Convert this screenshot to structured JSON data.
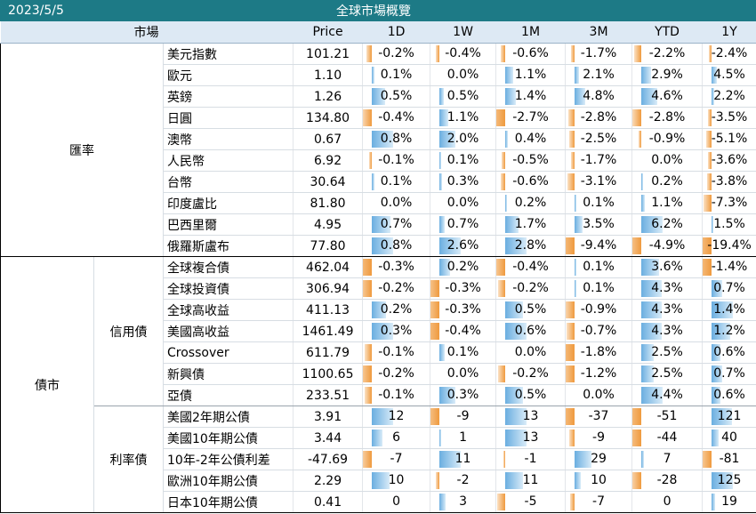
{
  "title": {
    "date": "2023/5/5",
    "text": "全球市場概覽"
  },
  "header": {
    "market": "市場",
    "columns": [
      "Price",
      "1D",
      "1W",
      "1M",
      "3M",
      "YTD",
      "1Y"
    ]
  },
  "fx": {
    "category": "匯率",
    "rows": [
      {
        "name": "美元指數",
        "price": "101.21",
        "vals": [
          "-0.2%",
          "-0.4%",
          "-0.6%",
          "-1.7%",
          "-2.2%",
          "-2.4%"
        ],
        "nums": [
          -0.2,
          -0.4,
          -0.6,
          -1.7,
          -2.2,
          -2.4
        ]
      },
      {
        "name": "歐元",
        "price": "1.10",
        "vals": [
          "0.1%",
          "0.0%",
          "1.1%",
          "2.1%",
          "2.9%",
          "4.5%"
        ],
        "nums": [
          0.1,
          0.0,
          1.1,
          2.1,
          2.9,
          4.5
        ]
      },
      {
        "name": "英鎊",
        "price": "1.26",
        "vals": [
          "0.5%",
          "0.5%",
          "1.4%",
          "4.8%",
          "4.6%",
          "2.2%"
        ],
        "nums": [
          0.5,
          0.5,
          1.4,
          4.8,
          4.6,
          2.2
        ]
      },
      {
        "name": "日圓",
        "price": "134.80",
        "vals": [
          "-0.4%",
          "1.1%",
          "-2.7%",
          "-2.8%",
          "-2.8%",
          "-3.5%"
        ],
        "nums": [
          -0.4,
          1.1,
          -2.7,
          -2.8,
          -2.8,
          -3.5
        ]
      },
      {
        "name": "澳幣",
        "price": "0.67",
        "vals": [
          "0.8%",
          "2.0%",
          "0.4%",
          "-2.5%",
          "-0.9%",
          "-5.1%"
        ],
        "nums": [
          0.8,
          2.0,
          0.4,
          -2.5,
          -0.9,
          -5.1
        ]
      },
      {
        "name": "人民幣",
        "price": "6.92",
        "vals": [
          "-0.1%",
          "0.1%",
          "-0.5%",
          "-1.7%",
          "0.0%",
          "-3.6%"
        ],
        "nums": [
          -0.1,
          0.1,
          -0.5,
          -1.7,
          0.0,
          -3.6
        ]
      },
      {
        "name": "台幣",
        "price": "30.64",
        "vals": [
          "0.1%",
          "0.3%",
          "-0.6%",
          "-3.1%",
          "0.2%",
          "-3.8%"
        ],
        "nums": [
          0.1,
          0.3,
          -0.6,
          -3.1,
          0.2,
          -3.8
        ]
      },
      {
        "name": "印度盧比",
        "price": "81.80",
        "vals": [
          "0.0%",
          "0.0%",
          "0.2%",
          "0.1%",
          "1.1%",
          "-7.3%"
        ],
        "nums": [
          0.0,
          0.0,
          0.2,
          0.1,
          1.1,
          -7.3
        ]
      },
      {
        "name": "巴西里爾",
        "price": "4.95",
        "vals": [
          "0.7%",
          "0.7%",
          "1.7%",
          "3.5%",
          "6.2%",
          "1.5%"
        ],
        "nums": [
          0.7,
          0.7,
          1.7,
          3.5,
          6.2,
          1.5
        ]
      },
      {
        "name": "俄羅斯盧布",
        "price": "77.80",
        "vals": [
          "0.8%",
          "2.6%",
          "2.8%",
          "-9.4%",
          "-4.9%",
          "-19.4%"
        ],
        "nums": [
          0.8,
          2.6,
          2.8,
          -9.4,
          -4.9,
          -19.4
        ]
      }
    ]
  },
  "bond": {
    "category": "債市",
    "credit": {
      "label": "信用債",
      "rows": [
        {
          "name": "全球複合債",
          "price": "462.04",
          "vals": [
            "-0.3%",
            "0.2%",
            "-0.4%",
            "0.1%",
            "3.6%",
            "-1.4%"
          ],
          "nums": [
            -0.3,
            0.2,
            -0.4,
            0.1,
            3.6,
            -1.4
          ]
        },
        {
          "name": "全球投資債",
          "price": "306.94",
          "vals": [
            "-0.2%",
            "-0.3%",
            "-0.2%",
            "0.1%",
            "4.3%",
            "0.7%"
          ],
          "nums": [
            -0.2,
            -0.3,
            -0.2,
            0.1,
            4.3,
            0.7
          ]
        },
        {
          "name": "全球高收益",
          "price": "411.13",
          "vals": [
            "0.2%",
            "-0.3%",
            "0.5%",
            "-0.9%",
            "4.3%",
            "1.4%"
          ],
          "nums": [
            0.2,
            -0.3,
            0.5,
            -0.9,
            4.3,
            1.4
          ]
        },
        {
          "name": "美國高收益",
          "price": "1461.49",
          "vals": [
            "0.3%",
            "-0.4%",
            "0.6%",
            "-0.7%",
            "4.3%",
            "1.2%"
          ],
          "nums": [
            0.3,
            -0.4,
            0.6,
            -0.7,
            4.3,
            1.2
          ]
        },
        {
          "name": "Crossover",
          "price": "611.79",
          "vals": [
            "-0.1%",
            "0.1%",
            "0.0%",
            "-1.8%",
            "2.5%",
            "0.6%"
          ],
          "nums": [
            -0.1,
            0.1,
            0.0,
            -1.8,
            2.5,
            0.6
          ]
        },
        {
          "name": "新興債",
          "price": "1100.65",
          "vals": [
            "-0.2%",
            "0.0%",
            "-0.2%",
            "-1.2%",
            "2.5%",
            "0.7%"
          ],
          "nums": [
            -0.2,
            0.0,
            -0.2,
            -1.2,
            2.5,
            0.7
          ]
        },
        {
          "name": "亞債",
          "price": "233.51",
          "vals": [
            "-0.1%",
            "0.3%",
            "0.5%",
            "0.0%",
            "4.4%",
            "0.6%"
          ],
          "nums": [
            -0.1,
            0.3,
            0.5,
            0.0,
            4.4,
            0.6
          ]
        }
      ]
    },
    "rates": {
      "label": "利率債",
      "rows": [
        {
          "name": "美國2年期公債",
          "price": "3.91",
          "vals": [
            "12",
            "-9",
            "13",
            "-37",
            "-51",
            "121"
          ],
          "nums": [
            12,
            -9,
            13,
            -37,
            -51,
            121
          ]
        },
        {
          "name": "美國10年期公債",
          "price": "3.44",
          "vals": [
            "6",
            "1",
            "13",
            "-9",
            "-44",
            "40"
          ],
          "nums": [
            6,
            1,
            13,
            -9,
            -44,
            40
          ]
        },
        {
          "name": "10年-2年公債利差",
          "price": "-47.69",
          "vals": [
            "-7",
            "11",
            "-1",
            "29",
            "7",
            "-81"
          ],
          "nums": [
            -7,
            11,
            -1,
            29,
            7,
            -81
          ]
        },
        {
          "name": "歐洲10年期公債",
          "price": "2.29",
          "vals": [
            "10",
            "-2",
            "11",
            "10",
            "-28",
            "125"
          ],
          "nums": [
            10,
            -2,
            11,
            10,
            -28,
            125
          ]
        },
        {
          "name": "日本10年期公債",
          "price": "0.41",
          "vals": [
            "0",
            "3",
            "-5",
            "-7",
            "0",
            "19"
          ],
          "nums": [
            0,
            3,
            -5,
            -7,
            0,
            19
          ]
        }
      ]
    }
  },
  "colors": {
    "header_bg": "#1d7a86",
    "subheader_bg": "#dde9f4",
    "positive_bar": "#6aaee0",
    "negative_bar": "#ef9a3e"
  }
}
